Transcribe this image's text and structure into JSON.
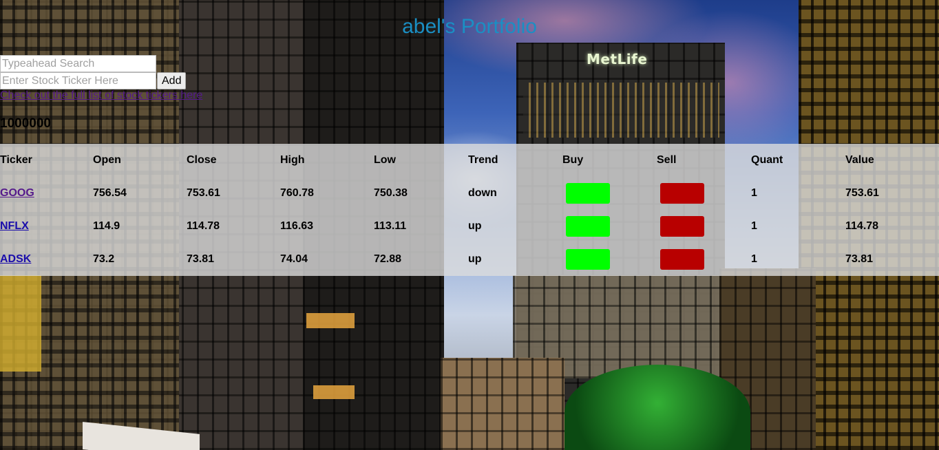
{
  "page": {
    "title": "abel's Portfolio"
  },
  "search": {
    "placeholder": "Typeahead Search",
    "value": ""
  },
  "add_stock": {
    "placeholder": "Enter Stock Ticker Here",
    "value": "",
    "button_label": "Add"
  },
  "tickers_link": "Check out the full list of stock tickers here",
  "balance": "1000000",
  "scene": {
    "sign_text": "MetLife"
  },
  "table": {
    "headers": [
      "Ticker",
      "Open",
      "Close",
      "High",
      "Low",
      "Trend",
      "Buy",
      "Sell",
      "Quant",
      "Value"
    ],
    "rows": [
      {
        "ticker": "GOOG",
        "open": "756.54",
        "close": "753.61",
        "high": "760.78",
        "low": "750.38",
        "trend": "down",
        "quant": "1",
        "value": "753.61"
      },
      {
        "ticker": "NFLX",
        "open": "114.9",
        "close": "114.78",
        "high": "116.63",
        "low": "113.11",
        "trend": "up",
        "quant": "1",
        "value": "114.78"
      },
      {
        "ticker": "ADSK",
        "open": "73.2",
        "close": "73.81",
        "high": "74.04",
        "low": "72.88",
        "trend": "up",
        "quant": "1",
        "value": "73.81"
      }
    ]
  },
  "colors": {
    "title": "#1a8fc4",
    "buy_button": "#00ff00",
    "sell_button": "#b80000",
    "table_panel": "#dcdcdc"
  }
}
